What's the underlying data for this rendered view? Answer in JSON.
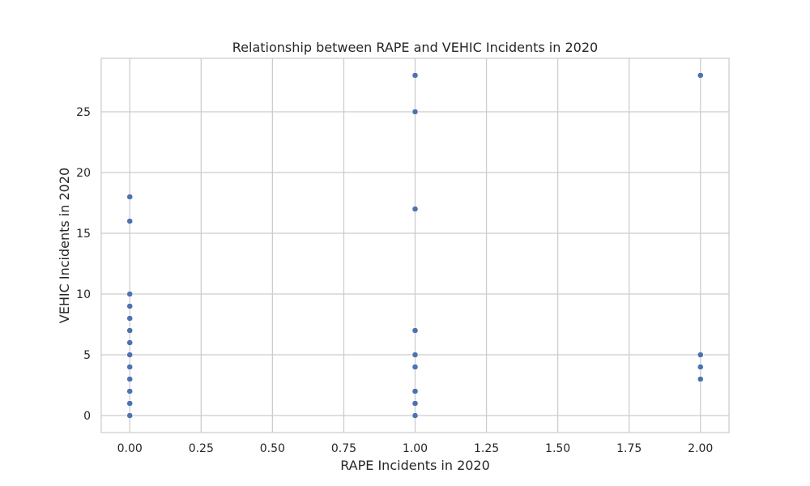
{
  "chart_data": {
    "type": "scatter",
    "title": "Relationship between RAPE and VEHIC Incidents in 2020",
    "xlabel": "RAPE Incidents in 2020",
    "ylabel": "VEHIC Incidents in 2020",
    "xlim": [
      -0.1,
      2.1
    ],
    "ylim": [
      -1.4,
      29.4
    ],
    "x_ticks": [
      0.0,
      0.25,
      0.5,
      0.75,
      1.0,
      1.25,
      1.5,
      1.75,
      2.0
    ],
    "x_tick_labels": [
      "0.00",
      "0.25",
      "0.50",
      "0.75",
      "1.00",
      "1.25",
      "1.50",
      "1.75",
      "2.00"
    ],
    "y_ticks": [
      0,
      5,
      10,
      15,
      20,
      25
    ],
    "y_tick_labels": [
      "0",
      "5",
      "10",
      "15",
      "20",
      "25"
    ],
    "grid": true,
    "marker_color": "#4c72b0",
    "grid_color": "#cccccc",
    "points": [
      {
        "x": 0,
        "y": 0
      },
      {
        "x": 0,
        "y": 1
      },
      {
        "x": 0,
        "y": 2
      },
      {
        "x": 0,
        "y": 3
      },
      {
        "x": 0,
        "y": 4
      },
      {
        "x": 0,
        "y": 5
      },
      {
        "x": 0,
        "y": 6
      },
      {
        "x": 0,
        "y": 7
      },
      {
        "x": 0,
        "y": 8
      },
      {
        "x": 0,
        "y": 9
      },
      {
        "x": 0,
        "y": 10
      },
      {
        "x": 0,
        "y": 16
      },
      {
        "x": 0,
        "y": 18
      },
      {
        "x": 1,
        "y": 0
      },
      {
        "x": 1,
        "y": 1
      },
      {
        "x": 1,
        "y": 2
      },
      {
        "x": 1,
        "y": 4
      },
      {
        "x": 1,
        "y": 5
      },
      {
        "x": 1,
        "y": 7
      },
      {
        "x": 1,
        "y": 17
      },
      {
        "x": 1,
        "y": 25
      },
      {
        "x": 1,
        "y": 28
      },
      {
        "x": 2,
        "y": 3
      },
      {
        "x": 2,
        "y": 4
      },
      {
        "x": 2,
        "y": 5
      },
      {
        "x": 2,
        "y": 28
      }
    ]
  }
}
